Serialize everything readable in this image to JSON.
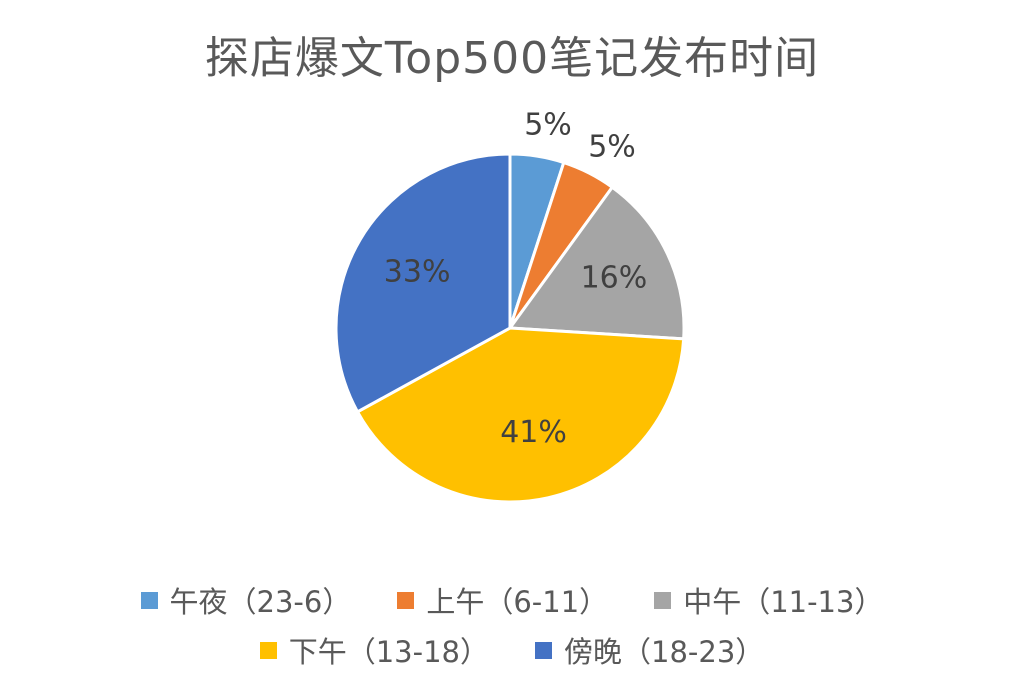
{
  "chart_data": {
    "type": "pie",
    "title": "探店爆文Top500笔记发布时间",
    "slices": [
      {
        "label": "午夜（23-6）",
        "value": 5,
        "value_label": "5%",
        "color": "#5B9BD5"
      },
      {
        "label": "上午（6-11）",
        "value": 5,
        "value_label": "5%",
        "color": "#ED7D31"
      },
      {
        "label": "中午（11-13）",
        "value": 16,
        "value_label": "16%",
        "color": "#A5A5A5"
      },
      {
        "label": "下午（13-18）",
        "value": 41,
        "value_label": "41%",
        "color": "#FFC000"
      },
      {
        "label": "傍晚（18-23）",
        "value": 33,
        "value_label": "33%",
        "color": "#4472C4"
      }
    ],
    "legend_position": "bottom"
  }
}
